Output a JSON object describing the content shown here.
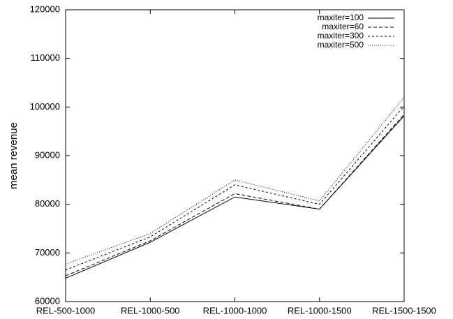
{
  "chart_data": {
    "type": "line",
    "ylabel": "mean revenue",
    "categories": [
      "REL-500-1000",
      "REL-1000-500",
      "REL-1000-1000",
      "REL-1000-1500",
      "REL-1500-1500"
    ],
    "series": [
      {
        "name": "maxiter=100",
        "color": "#000000",
        "dash": "solid",
        "values": [
          64800,
          72200,
          81500,
          79000,
          98200
        ]
      },
      {
        "name": "maxiter=60",
        "color": "#000000",
        "dash": "dashed",
        "values": [
          65300,
          72500,
          82200,
          79000,
          98500
        ]
      },
      {
        "name": "maxiter=300",
        "color": "#000000",
        "dash": "dotted",
        "values": [
          66500,
          73300,
          84000,
          80000,
          100200
        ]
      },
      {
        "name": "maxiter=500",
        "color": "#000000",
        "dash": "fine-dotted",
        "values": [
          67700,
          74000,
          85000,
          80700,
          102000
        ]
      }
    ],
    "ylim": [
      60000,
      120000
    ],
    "yticks": [
      60000,
      70000,
      80000,
      90000,
      100000,
      110000,
      120000
    ],
    "grid": false,
    "legend": "top-right"
  }
}
